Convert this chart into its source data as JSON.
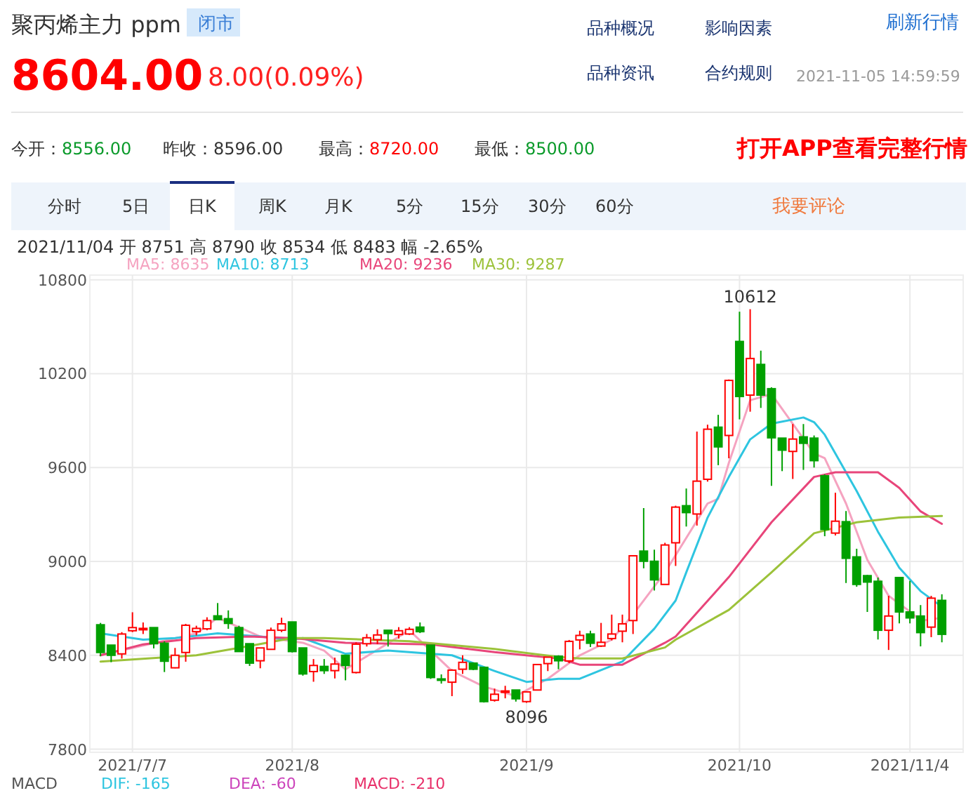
{
  "chart_data": {
    "type": "candlestick",
    "title": "聚丙烯主力 ppm",
    "categories": [
      null,
      null,
      null,
      "2021/7/7",
      null,
      null,
      null,
      null,
      null,
      null,
      null,
      null,
      null,
      null,
      null,
      null,
      null,
      null,
      "2021/8",
      null,
      null,
      null,
      null,
      null,
      null,
      null,
      null,
      null,
      null,
      null,
      null,
      null,
      null,
      null,
      null,
      null,
      null,
      null,
      null,
      null,
      "2021/9",
      null,
      null,
      null,
      null,
      null,
      null,
      null,
      null,
      null,
      null,
      null,
      null,
      null,
      null,
      null,
      null,
      null,
      null,
      null,
      "2021/10",
      null,
      null,
      null,
      null,
      null,
      null,
      null,
      null,
      null,
      null,
      null,
      null,
      null,
      null,
      null,
      "2021/11/4",
      null,
      null,
      null
    ],
    "ohlc": [
      [
        8595,
        8607,
        8394,
        8418
      ],
      [
        8465,
        8465,
        8356,
        8400
      ],
      [
        8409,
        8548,
        8379,
        8536
      ],
      [
        8557,
        8675,
        8548,
        8577
      ],
      [
        8566,
        8610,
        8536,
        8572
      ],
      [
        8577,
        8577,
        8444,
        8474
      ],
      [
        8477,
        8489,
        8293,
        8362
      ],
      [
        8320,
        8447,
        8317,
        8400
      ],
      [
        8418,
        8601,
        8359,
        8592
      ],
      [
        8551,
        8589,
        8527,
        8572
      ],
      [
        8569,
        8643,
        8560,
        8622
      ],
      [
        8652,
        8734,
        8628,
        8628
      ],
      [
        8634,
        8687,
        8569,
        8604
      ],
      [
        8577,
        8589,
        8424,
        8424
      ],
      [
        8474,
        8474,
        8332,
        8350
      ],
      [
        8365,
        8447,
        8317,
        8447
      ],
      [
        8438,
        8577,
        8438,
        8560
      ],
      [
        8560,
        8640,
        8548,
        8601
      ],
      [
        8613,
        8613,
        8418,
        8424
      ],
      [
        8447,
        8447,
        8270,
        8281
      ],
      [
        8296,
        8376,
        8231,
        8335
      ],
      [
        8329,
        8376,
        8281,
        8302
      ],
      [
        8302,
        8385,
        8252,
        8344
      ],
      [
        8400,
        8400,
        8240,
        8335
      ],
      [
        8290,
        8483,
        8284,
        8471
      ],
      [
        8474,
        8536,
        8456,
        8512
      ],
      [
        8500,
        8566,
        8471,
        8530
      ],
      [
        8560,
        8560,
        8456,
        8539
      ],
      [
        8533,
        8580,
        8507,
        8557
      ],
      [
        8536,
        8580,
        8530,
        8566
      ],
      [
        8580,
        8610,
        8542,
        8551
      ],
      [
        8465,
        8465,
        8249,
        8258
      ],
      [
        8249,
        8278,
        8219,
        8246
      ],
      [
        8228,
        8311,
        8139,
        8305
      ],
      [
        8311,
        8400,
        8281,
        8355
      ],
      [
        8350,
        8350,
        8305,
        8311
      ],
      [
        8323,
        8323,
        8098,
        8104
      ],
      [
        8113,
        8187,
        8104,
        8151
      ],
      [
        8166,
        8205,
        8125,
        8172
      ],
      [
        8178,
        8178,
        8104,
        8122
      ],
      [
        8104,
        8166,
        8096,
        8166
      ],
      [
        8178,
        8341,
        8175,
        8341
      ],
      [
        8347,
        8388,
        8299,
        8388
      ],
      [
        8394,
        8400,
        8311,
        8365
      ],
      [
        8364,
        8498,
        8350,
        8489
      ],
      [
        8498,
        8557,
        8438,
        8527
      ],
      [
        8536,
        8557,
        8453,
        8477
      ],
      [
        8459,
        8607,
        8453,
        8483
      ],
      [
        8507,
        8660,
        8495,
        8536
      ],
      [
        8554,
        8660,
        8483,
        8601
      ],
      [
        8622,
        9036,
        8536,
        9036
      ],
      [
        9066,
        9341,
        8956,
        9001
      ],
      [
        9001,
        9075,
        8814,
        8882
      ],
      [
        8853,
        9119,
        8853,
        9105
      ],
      [
        9119,
        9356,
        8971,
        9347
      ],
      [
        9356,
        9466,
        9223,
        9312
      ],
      [
        9303,
        9830,
        9229,
        9513
      ],
      [
        9525,
        9874,
        9510,
        9845
      ],
      [
        9858,
        9937,
        9615,
        9732
      ],
      [
        9805,
        10163,
        9659,
        10157
      ],
      [
        10406,
        10596,
        9908,
        10054
      ],
      [
        10063,
        10612,
        9957,
        10297
      ],
      [
        10259,
        10347,
        9981,
        10063
      ],
      [
        10104,
        10113,
        9483,
        9790
      ],
      [
        9788,
        9788,
        9577,
        9711
      ],
      [
        9703,
        9878,
        9527,
        9782
      ],
      [
        9796,
        9878,
        9585,
        9755
      ],
      [
        9788,
        9805,
        9600,
        9644
      ],
      [
        9547,
        9556,
        9161,
        9204
      ],
      [
        9181,
        9439,
        9166,
        9257
      ],
      [
        9254,
        9322,
        8862,
        9020
      ],
      [
        9029,
        9081,
        8838,
        8853
      ],
      [
        8909,
        8914,
        8677,
        8868
      ],
      [
        8873,
        8897,
        8501,
        8560
      ],
      [
        8560,
        8780,
        8434,
        8651
      ],
      [
        8897,
        8897,
        8604,
        8677
      ],
      [
        8677,
        8876,
        8604,
        8639
      ],
      [
        8651,
        8721,
        8457,
        8545
      ],
      [
        8580,
        8780,
        8516,
        8765
      ],
      [
        8751,
        8790,
        8483,
        8534
      ]
    ],
    "series": [
      {
        "name": "MA5: 8635",
        "color": "#f5a3c0",
        "type": "line",
        "values": [
          8400,
          null,
          null,
          null,
          null,
          null,
          null,
          null,
          null,
          8540,
          null,
          8640,
          null,
          null,
          null,
          8520,
          null,
          null,
          null,
          8480,
          null,
          8430,
          null,
          8310,
          null,
          null,
          null,
          null,
          null,
          8560,
          null,
          null,
          null,
          8300,
          null,
          null,
          8200,
          null,
          null,
          8140,
          null,
          null,
          8250,
          null,
          null,
          8400,
          null,
          null,
          8500,
          null,
          8660,
          null,
          null,
          8930,
          null,
          null,
          null,
          9370,
          9400,
          9630,
          null,
          10030,
          null,
          10070,
          null,
          9880,
          null,
          9690,
          9660,
          null,
          9370,
          null,
          9010,
          null,
          8780,
          null,
          8680,
          8620,
          null,
          8640
        ]
      },
      {
        "name": "MA10: 8713",
        "color": "#2ec5e0",
        "type": "line",
        "values": [
          8540,
          null,
          null,
          null,
          8500,
          null,
          null,
          8510,
          null,
          null,
          null,
          8540,
          null,
          null,
          null,
          8520,
          null,
          null,
          8500,
          8510,
          null,
          null,
          null,
          8410,
          null,
          null,
          null,
          8430,
          null,
          null,
          null,
          null,
          null,
          8400,
          null,
          null,
          null,
          8300,
          null,
          null,
          8230,
          null,
          null,
          8250,
          null,
          8250,
          null,
          null,
          null,
          8360,
          null,
          null,
          8570,
          null,
          8750,
          8930,
          null,
          9280,
          null,
          9540,
          null,
          9780,
          null,
          9880,
          null,
          null,
          9920,
          9890,
          9810,
          9690,
          null,
          9450,
          null,
          9190,
          null,
          8960,
          null,
          8810,
          null,
          8710
        ]
      },
      {
        "name": "MA20: 9236",
        "color": "#e8457a",
        "type": "line",
        "values": [
          8400,
          null,
          null,
          null,
          8470,
          null,
          null,
          null,
          null,
          8510,
          null,
          null,
          null,
          null,
          8520,
          null,
          null,
          null,
          8510,
          null,
          null,
          null,
          null,
          8480,
          null,
          null,
          null,
          null,
          null,
          null,
          null,
          8470,
          null,
          null,
          null,
          null,
          null,
          8420,
          null,
          null,
          null,
          null,
          null,
          8380,
          null,
          8340,
          null,
          null,
          null,
          8340,
          null,
          null,
          null,
          8480,
          8520,
          null,
          null,
          null,
          null,
          8900,
          null,
          null,
          null,
          9250,
          null,
          null,
          null,
          9540,
          null,
          9570,
          null,
          9570,
          null,
          9570,
          null,
          9470,
          null,
          9320,
          null,
          9240
        ]
      },
      {
        "name": "MA30: 9287",
        "color": "#9cc23a",
        "type": "line",
        "values": [
          8360,
          null,
          null,
          null,
          null,
          null,
          null,
          null,
          null,
          8400,
          null,
          null,
          null,
          null,
          8460,
          null,
          null,
          null,
          8510,
          null,
          null,
          8510,
          null,
          null,
          null,
          null,
          null,
          null,
          null,
          8490,
          null,
          null,
          null,
          null,
          null,
          null,
          null,
          8440,
          null,
          null,
          null,
          null,
          null,
          8390,
          null,
          8380,
          null,
          null,
          null,
          8380,
          null,
          null,
          null,
          8450,
          8500,
          null,
          null,
          null,
          null,
          8690,
          null,
          null,
          null,
          8930,
          null,
          null,
          null,
          9180,
          null,
          null,
          null,
          9250,
          null,
          null,
          null,
          9280,
          null,
          null,
          null,
          9290
        ]
      }
    ],
    "ylim": [
      7780,
      10830
    ],
    "yticks": [
      7800,
      8400,
      9000,
      9600,
      10200,
      10800
    ],
    "grid": true,
    "legend": "top left",
    "annotations": [
      "闭市",
      "8604.00",
      "8.00(0.09%)",
      "品种概况",
      "影响因素",
      "刷新行情",
      "品种资讯",
      "合约规则",
      "2021-11-05 14:59:59",
      "今开：8556.00",
      "昨收：8596.00",
      "最高：8720.00",
      "最低：8500.00",
      "打开APP查看完整行情",
      "分时",
      "5日",
      "日K",
      "周K",
      "月K",
      "5分",
      "15分",
      "30分",
      "60分",
      "我要评论",
      "2021/11/04 开 8751 高 8790 收 8534 低 8483 幅 -2.65%",
      "MACD",
      "DIF: -165",
      "DEA: -60",
      "MACD: -210",
      {
        "text": "10612",
        "y": 10612
      },
      {
        "text": "8096",
        "y": 8096
      }
    ]
  }
}
